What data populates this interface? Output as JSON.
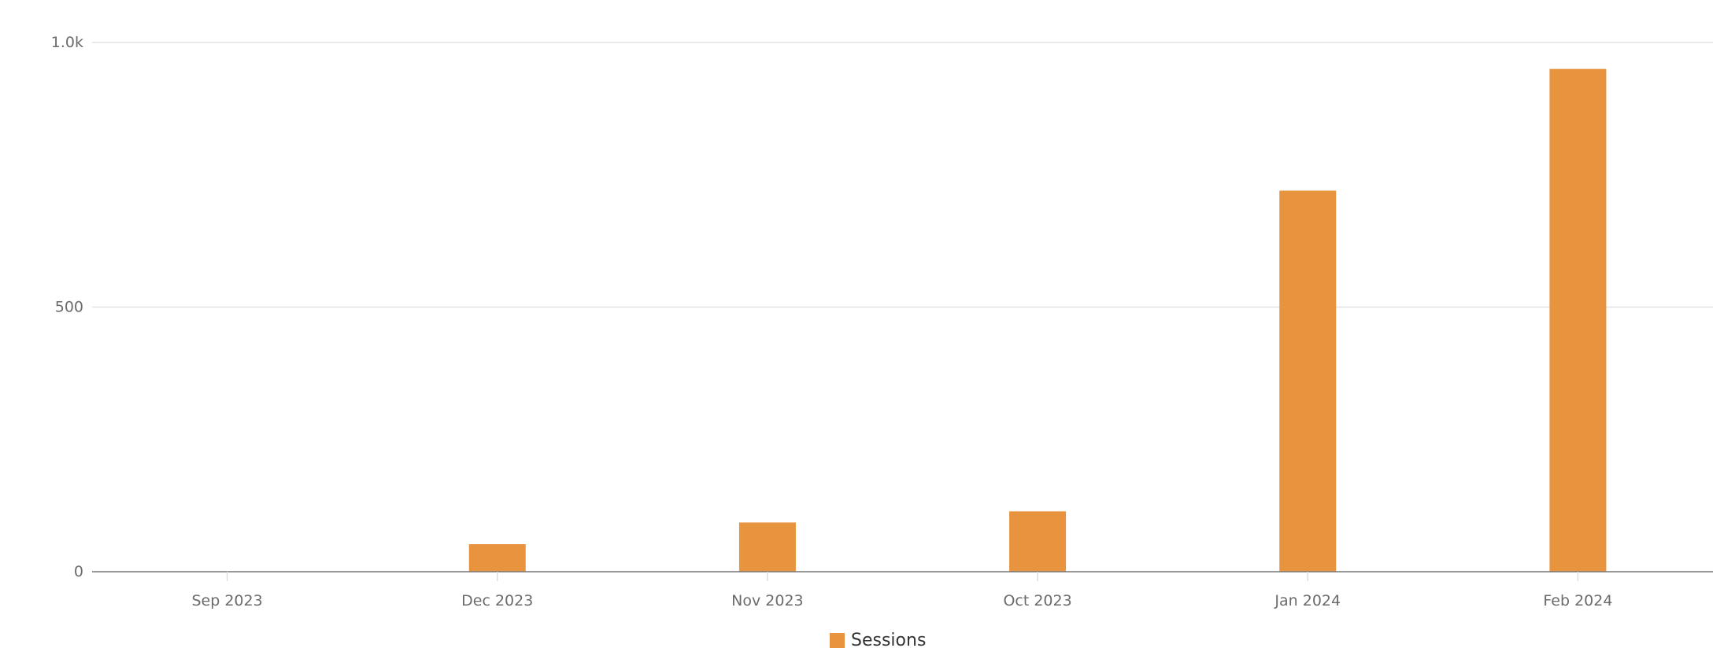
{
  "chart_data": {
    "type": "bar",
    "categories": [
      "Sep 2023",
      "Dec 2023",
      "Nov 2023",
      "Oct 2023",
      "Jan 2024",
      "Feb 2024"
    ],
    "series": [
      {
        "name": "Sessions",
        "values": [
          0,
          52,
          93,
          114,
          720,
          950
        ],
        "color": "#E8943E"
      }
    ],
    "y_ticks": [
      {
        "value": 0,
        "label": "0"
      },
      {
        "value": 500,
        "label": "500"
      },
      {
        "value": 1000,
        "label": "1.0k"
      }
    ],
    "ylim": [
      0,
      1000
    ],
    "grid": true,
    "legend_position": "bottom-center",
    "title": "",
    "xlabel": "",
    "ylabel": ""
  },
  "colors": {
    "bar": "#E8943E",
    "grid": "#e3e3e3",
    "axis": "#777777",
    "tick_text": "#6b6b6b"
  },
  "legend": {
    "label": "Sessions"
  }
}
